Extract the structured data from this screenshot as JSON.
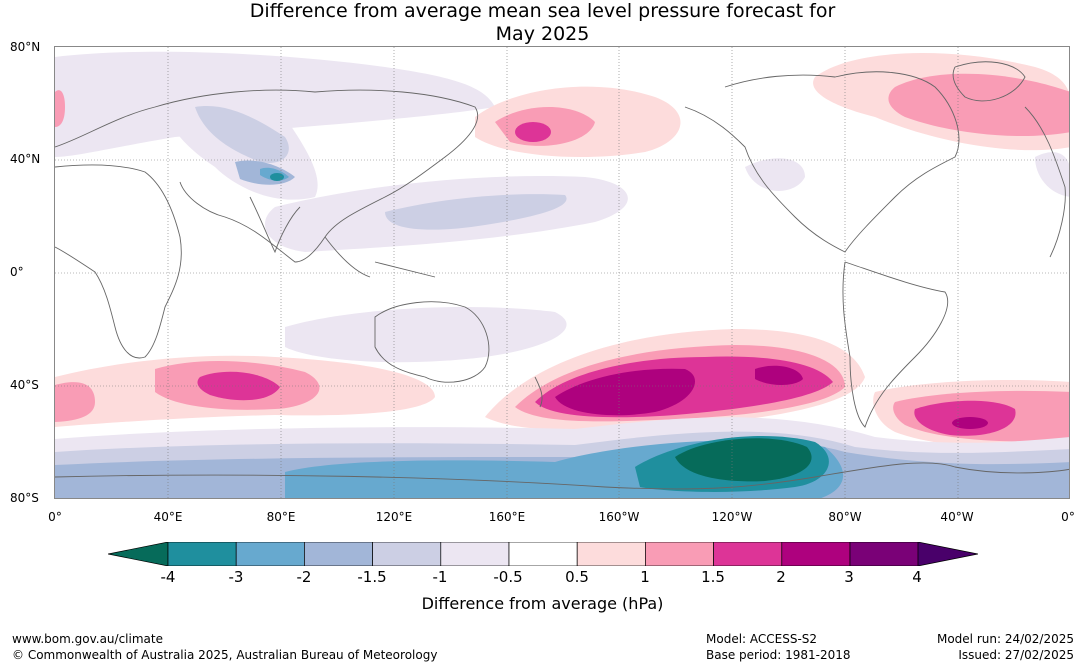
{
  "title_line1": "Difference from average mean sea level pressure forecast for",
  "title_line2": "May 2025",
  "lat_labels": [
    "80°N",
    "40°N",
    "0°",
    "40°S",
    "80°S"
  ],
  "lon_labels": [
    "0°",
    "40°E",
    "80°E",
    "120°E",
    "160°E",
    "160°W",
    "120°W",
    "80°W",
    "40°W",
    "0°"
  ],
  "colorbar": {
    "ticks": [
      "-4",
      "-3",
      "-2",
      "-1.5",
      "-1",
      "-0.5",
      "0.5",
      "1",
      "1.5",
      "2",
      "3",
      "4"
    ],
    "colors": [
      "#066b5a",
      "#1f8f9e",
      "#67a9cf",
      "#a2b6d8",
      "#cccfe4",
      "#ece6f2",
      "#ffffff",
      "#fddcdc",
      "#f99cb5",
      "#dd3497",
      "#ae017e",
      "#7a0177",
      "#49006a"
    ],
    "label": "Difference from average (hPa)"
  },
  "footer": {
    "website": "www.bom.gov.au/climate",
    "copyright": "© Commonwealth of Australia 2025, Australian Bureau of Meteorology",
    "model": "Model: ACCESS-S2",
    "base_period": "Base period: 1981-2018",
    "model_run": "Model run: 24/02/2025",
    "issued": "Issued: 27/02/2025"
  }
}
